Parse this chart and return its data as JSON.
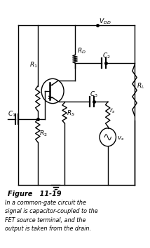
{
  "title": "Figure   11-19",
  "caption_line1": "In a common-gate circuit the",
  "caption_line2": "signal is capacitor-coupled to the",
  "caption_line3": "FET source terminal, and the",
  "caption_line4": "output is taken from the drain.",
  "fig_width": 2.14,
  "fig_height": 3.54,
  "dpi": 100,
  "background": "white",
  "line_color": "black",
  "line_width": 1.0,
  "xlim": [
    0,
    10
  ],
  "ylim": [
    0,
    15
  ]
}
